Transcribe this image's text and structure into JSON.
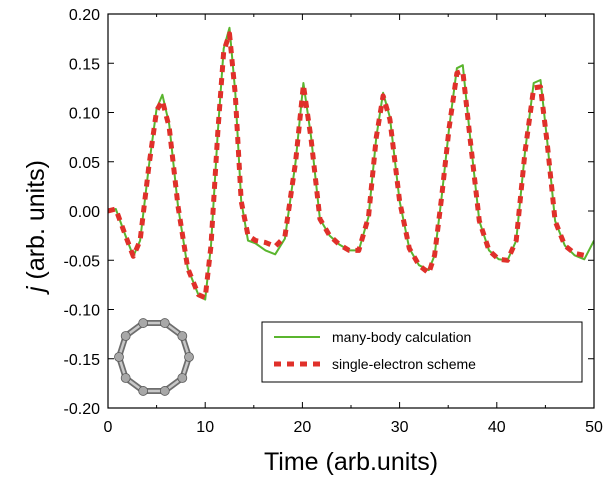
{
  "chart_data": {
    "type": "line",
    "xlabel": "Time (arb.units)",
    "ylabel_symbol": "j",
    "ylabel_rest": " (arb. units)",
    "xlim": [
      0,
      50
    ],
    "ylim": [
      -0.2,
      0.2
    ],
    "xticks": [
      0,
      10,
      20,
      30,
      40,
      50
    ],
    "yticks": [
      -0.2,
      -0.15,
      -0.1,
      -0.05,
      0.0,
      0.05,
      0.1,
      0.15,
      0.2
    ],
    "ytick_labels": [
      "-0.20",
      "-0.15",
      "-0.10",
      "-0.05",
      "0.00",
      "0.05",
      "0.10",
      "0.15",
      "0.20"
    ],
    "grid": false,
    "legend_position": "lower-right",
    "series": [
      {
        "name": "many-body calculation",
        "color": "#5ab52e",
        "style": "solid",
        "x": [
          0,
          0.8,
          1.8,
          2.6,
          3.3,
          4.2,
          5.0,
          5.6,
          6.3,
          7.2,
          8.2,
          9.3,
          10.0,
          10.6,
          11.3,
          11.9,
          12.5,
          13.1,
          13.7,
          14.4,
          15.2,
          16.2,
          17.2,
          18.2,
          19.3,
          20.1,
          20.9,
          21.8,
          22.8,
          23.8,
          24.8,
          25.8,
          26.8,
          27.6,
          28.3,
          29.0,
          30.0,
          31.0,
          32.0,
          33.0,
          33.6,
          34.3,
          35.1,
          35.9,
          36.5,
          37.2,
          38.2,
          39.2,
          40.2,
          41.1,
          42.0,
          42.9,
          43.8,
          44.5,
          45.2,
          46.0,
          47.0,
          48.0,
          49.0,
          50.0
        ],
        "y": [
          0.0,
          0.002,
          -0.025,
          -0.046,
          -0.03,
          0.045,
          0.104,
          0.118,
          0.088,
          0.005,
          -0.058,
          -0.085,
          -0.09,
          -0.035,
          0.08,
          0.165,
          0.186,
          0.12,
          0.01,
          -0.03,
          -0.033,
          -0.04,
          -0.044,
          -0.028,
          0.05,
          0.13,
          0.075,
          -0.008,
          -0.025,
          -0.034,
          -0.04,
          -0.04,
          -0.006,
          0.075,
          0.12,
          0.095,
          0.01,
          -0.038,
          -0.055,
          -0.06,
          -0.045,
          0.012,
          0.085,
          0.145,
          0.148,
          0.08,
          -0.01,
          -0.04,
          -0.049,
          -0.05,
          -0.03,
          0.06,
          0.13,
          0.133,
          0.07,
          -0.01,
          -0.035,
          -0.045,
          -0.049,
          -0.03
        ]
      },
      {
        "name": "single-electron scheme",
        "color": "#e0302a",
        "style": "dashed",
        "x": [
          0,
          0.8,
          1.8,
          2.6,
          3.3,
          4.2,
          5.0,
          5.6,
          6.3,
          7.2,
          8.2,
          9.3,
          10.0,
          10.6,
          11.3,
          11.9,
          12.5,
          13.1,
          13.7,
          14.4,
          15.2,
          16.2,
          17.2,
          18.2,
          19.3,
          20.1,
          20.9,
          21.8,
          22.8,
          23.8,
          24.8,
          25.8,
          26.8,
          27.6,
          28.3,
          29.0,
          30.0,
          31.0,
          32.0,
          33.0,
          33.6,
          34.3,
          35.1,
          35.9,
          36.5,
          37.2,
          38.2,
          39.2,
          40.2,
          41.1,
          42.0,
          42.9,
          43.8,
          44.5,
          45.2,
          46.0,
          47.0,
          48.0,
          49.0
        ],
        "y": [
          0.0,
          0.002,
          -0.025,
          -0.046,
          -0.03,
          0.045,
          0.102,
          0.112,
          0.085,
          0.005,
          -0.058,
          -0.085,
          -0.088,
          -0.035,
          0.08,
          0.162,
          0.18,
          0.118,
          0.01,
          -0.025,
          -0.03,
          -0.032,
          -0.036,
          -0.026,
          0.05,
          0.128,
          0.073,
          -0.008,
          -0.025,
          -0.034,
          -0.04,
          -0.04,
          -0.006,
          0.075,
          0.117,
          0.093,
          0.01,
          -0.038,
          -0.055,
          -0.063,
          -0.045,
          0.012,
          0.085,
          0.14,
          0.142,
          0.078,
          -0.01,
          -0.04,
          -0.049,
          -0.05,
          -0.03,
          0.06,
          0.125,
          0.126,
          0.068,
          -0.01,
          -0.035,
          -0.043,
          -0.045
        ]
      }
    ]
  },
  "inset": {
    "description_icon": "ring-molecule-icon",
    "atom_color": "#9a9a9a",
    "bond_color": "#8c8c8c"
  }
}
